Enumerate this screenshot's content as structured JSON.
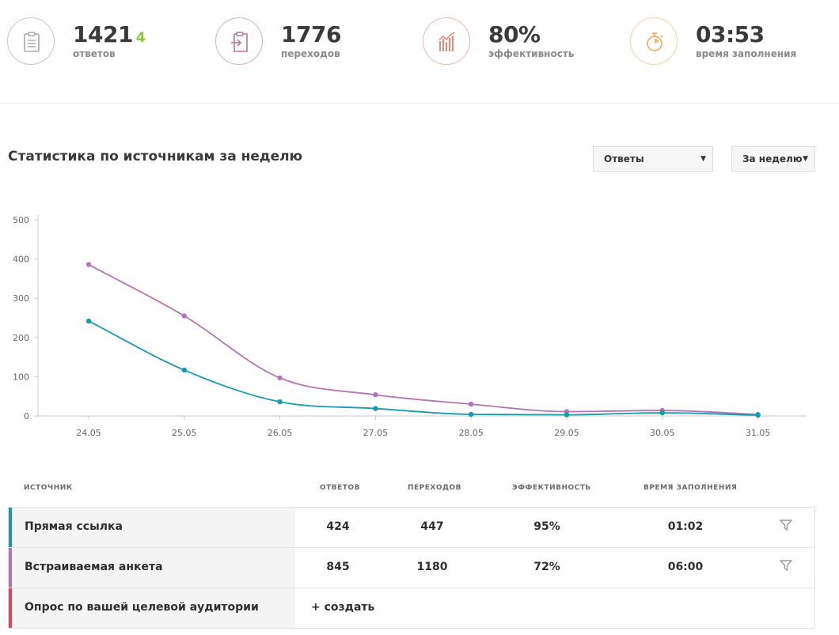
{
  "stats": [
    {
      "value": "1421",
      "delta": "4",
      "label": "ответов",
      "icon": "clipboard-icon",
      "color": "#a8a8a8",
      "delta_color": "#8cc63f"
    },
    {
      "value": "1776",
      "delta": "",
      "label": "переходов",
      "icon": "clipboard-enter-icon",
      "color": "#b07a9a",
      "delta_color": ""
    },
    {
      "value": "80%",
      "delta": "",
      "label": "эффективность",
      "icon": "bar-chart-icon",
      "color": "#e6897a",
      "delta_color": ""
    },
    {
      "value": "03:53",
      "delta": "",
      "label": "время заполнения",
      "icon": "stopwatch-icon",
      "color": "#f2b26b",
      "delta_color": ""
    }
  ],
  "section": {
    "title": "Статистика по источникам за неделю",
    "metric_select": "Ответы",
    "period_select": "За неделю"
  },
  "chart_data": {
    "type": "line",
    "title": "",
    "xlabel": "",
    "ylabel": "",
    "categories": [
      "24.05",
      "25.05",
      "26.05",
      "27.05",
      "28.05",
      "29.05",
      "30.05",
      "31.05"
    ],
    "ylim": [
      0,
      500
    ],
    "yticks": [
      0,
      100,
      200,
      300,
      400,
      500
    ],
    "grid": false,
    "legend": "none",
    "series": [
      {
        "color": "#b077b0",
        "values": [
          386,
          255,
          97,
          54,
          30,
          11,
          14,
          4
        ]
      },
      {
        "color": "#1a9aa6",
        "values": [
          242,
          117,
          36,
          19,
          4,
          3,
          8,
          2
        ]
      }
    ]
  },
  "table": {
    "headers": [
      "источник",
      "ответов",
      "переходов",
      "эффективность",
      "время заполнения"
    ],
    "rows": [
      {
        "name": "Прямая ссылка",
        "answers": "424",
        "visits": "447",
        "efficiency": "95%",
        "time": "01:02",
        "color": "#1a9aa6",
        "icon": "filter-icon"
      },
      {
        "name": "Встраиваемая анкета",
        "answers": "845",
        "visits": "1180",
        "efficiency": "72%",
        "time": "06:00",
        "color": "#b077b0",
        "icon": "filter-icon"
      },
      {
        "name": "Опрос по вашей целевой аудитории",
        "create": "+ создать",
        "color": "#d9455a"
      }
    ]
  }
}
